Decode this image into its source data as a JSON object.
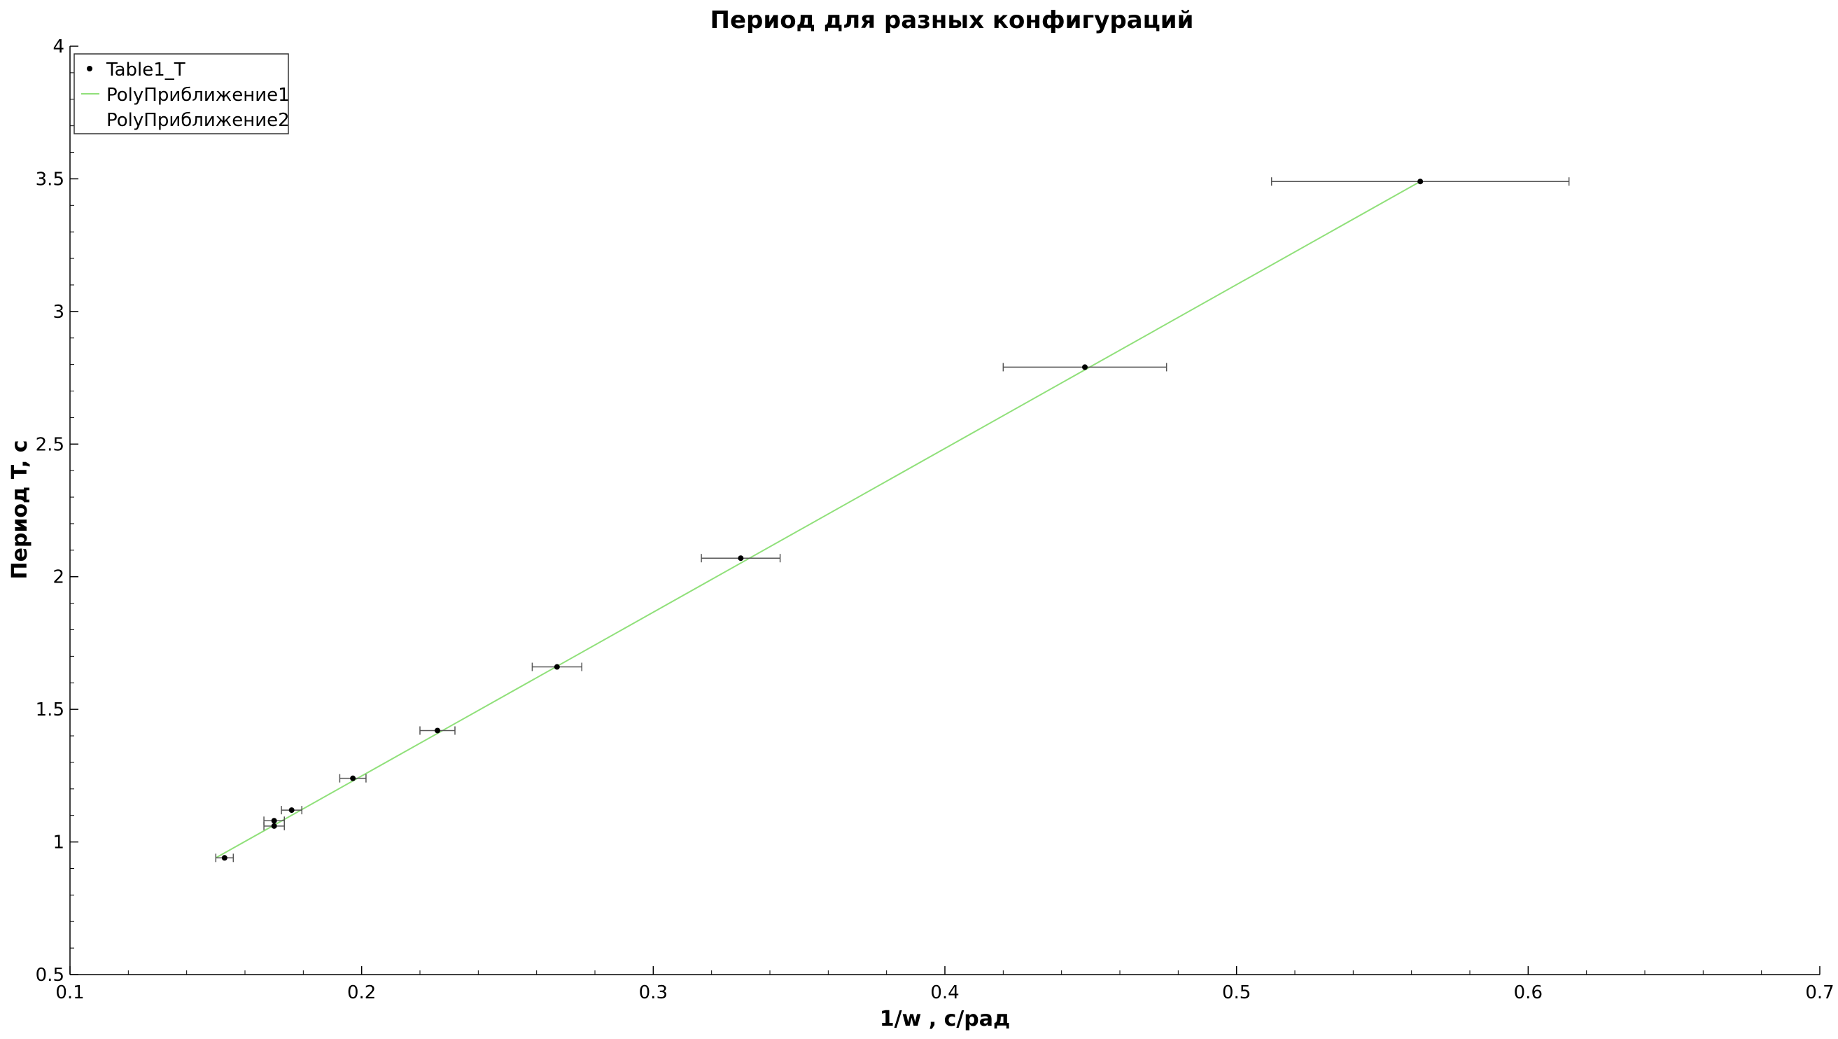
{
  "chart_data": {
    "type": "scatter",
    "title": "Период для разных конфигураций",
    "xlabel": "1/w , с/рад",
    "ylabel": "Период T, с",
    "xlim": [
      0.1,
      0.7
    ],
    "ylim": [
      0.5,
      4
    ],
    "x_ticks": [
      "0.1",
      "0.2",
      "0.3",
      "0.4",
      "0.5",
      "0.6",
      "0.7"
    ],
    "y_ticks": [
      "0.5",
      "1",
      "1.5",
      "2",
      "2.5",
      "3",
      "3.5",
      "4"
    ],
    "grid": false,
    "legend_position": "top-left",
    "legend": [
      "Table1_T",
      "PolyПриближение1",
      "PolyПриближение2"
    ],
    "colors": {
      "points": "#000000",
      "error_bars": "#555555",
      "fit_line": "#90e07a",
      "axis": "#000000"
    },
    "series": [
      {
        "name": "Table1_T",
        "kind": "points",
        "points": [
          {
            "x": 0.153,
            "y": 0.94,
            "xerr": 0.003
          },
          {
            "x": 0.17,
            "y": 1.06,
            "xerr": 0.0035
          },
          {
            "x": 0.17,
            "y": 1.08,
            "xerr": 0.0035
          },
          {
            "x": 0.176,
            "y": 1.12,
            "xerr": 0.0035
          },
          {
            "x": 0.197,
            "y": 1.24,
            "xerr": 0.0045
          },
          {
            "x": 0.226,
            "y": 1.42,
            "xerr": 0.006
          },
          {
            "x": 0.267,
            "y": 1.66,
            "xerr": 0.0085
          },
          {
            "x": 0.33,
            "y": 2.07,
            "xerr": 0.0135
          },
          {
            "x": 0.448,
            "y": 2.79,
            "xerr": 0.028
          },
          {
            "x": 0.563,
            "y": 3.49,
            "xerr": 0.051
          }
        ]
      },
      {
        "name": "PolyПриближение1",
        "kind": "line",
        "points": [
          {
            "x": 0.15,
            "y": 0.94
          },
          {
            "x": 0.563,
            "y": 3.49
          }
        ]
      },
      {
        "name": "PolyПриближение2",
        "kind": "none",
        "points": []
      }
    ]
  }
}
